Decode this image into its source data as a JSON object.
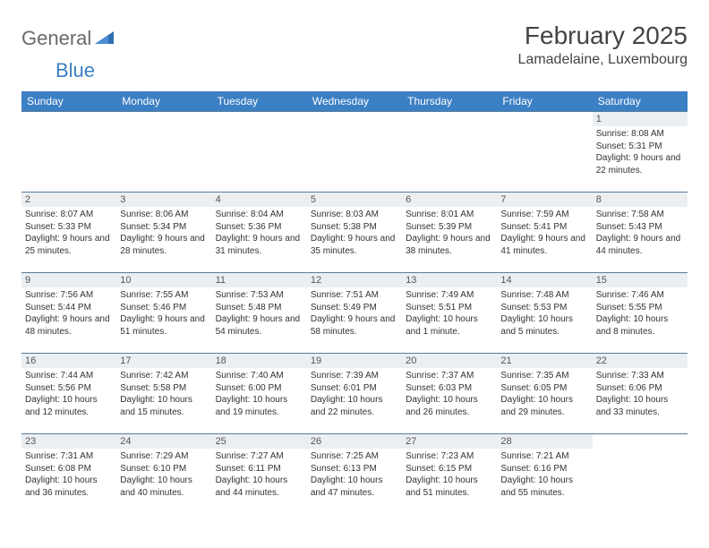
{
  "brand": {
    "part1": "General",
    "part2": "Blue"
  },
  "title": "February 2025",
  "location": "Lamadelaine, Luxembourg",
  "colors": {
    "header_bg": "#3b7fc4",
    "header_text": "#ffffff",
    "daynum_bg": "#eceff1",
    "border": "#5a7a9a",
    "logo_gray": "#6a6a6a",
    "logo_blue": "#3b7fc4"
  },
  "day_headers": [
    "Sunday",
    "Monday",
    "Tuesday",
    "Wednesday",
    "Thursday",
    "Friday",
    "Saturday"
  ],
  "weeks": [
    [
      null,
      null,
      null,
      null,
      null,
      null,
      {
        "n": "1",
        "sunrise": "8:08 AM",
        "sunset": "5:31 PM",
        "daylight": "9 hours and 22 minutes."
      }
    ],
    [
      {
        "n": "2",
        "sunrise": "8:07 AM",
        "sunset": "5:33 PM",
        "daylight": "9 hours and 25 minutes."
      },
      {
        "n": "3",
        "sunrise": "8:06 AM",
        "sunset": "5:34 PM",
        "daylight": "9 hours and 28 minutes."
      },
      {
        "n": "4",
        "sunrise": "8:04 AM",
        "sunset": "5:36 PM",
        "daylight": "9 hours and 31 minutes."
      },
      {
        "n": "5",
        "sunrise": "8:03 AM",
        "sunset": "5:38 PM",
        "daylight": "9 hours and 35 minutes."
      },
      {
        "n": "6",
        "sunrise": "8:01 AM",
        "sunset": "5:39 PM",
        "daylight": "9 hours and 38 minutes."
      },
      {
        "n": "7",
        "sunrise": "7:59 AM",
        "sunset": "5:41 PM",
        "daylight": "9 hours and 41 minutes."
      },
      {
        "n": "8",
        "sunrise": "7:58 AM",
        "sunset": "5:43 PM",
        "daylight": "9 hours and 44 minutes."
      }
    ],
    [
      {
        "n": "9",
        "sunrise": "7:56 AM",
        "sunset": "5:44 PM",
        "daylight": "9 hours and 48 minutes."
      },
      {
        "n": "10",
        "sunrise": "7:55 AM",
        "sunset": "5:46 PM",
        "daylight": "9 hours and 51 minutes."
      },
      {
        "n": "11",
        "sunrise": "7:53 AM",
        "sunset": "5:48 PM",
        "daylight": "9 hours and 54 minutes."
      },
      {
        "n": "12",
        "sunrise": "7:51 AM",
        "sunset": "5:49 PM",
        "daylight": "9 hours and 58 minutes."
      },
      {
        "n": "13",
        "sunrise": "7:49 AM",
        "sunset": "5:51 PM",
        "daylight": "10 hours and 1 minute."
      },
      {
        "n": "14",
        "sunrise": "7:48 AM",
        "sunset": "5:53 PM",
        "daylight": "10 hours and 5 minutes."
      },
      {
        "n": "15",
        "sunrise": "7:46 AM",
        "sunset": "5:55 PM",
        "daylight": "10 hours and 8 minutes."
      }
    ],
    [
      {
        "n": "16",
        "sunrise": "7:44 AM",
        "sunset": "5:56 PM",
        "daylight": "10 hours and 12 minutes."
      },
      {
        "n": "17",
        "sunrise": "7:42 AM",
        "sunset": "5:58 PM",
        "daylight": "10 hours and 15 minutes."
      },
      {
        "n": "18",
        "sunrise": "7:40 AM",
        "sunset": "6:00 PM",
        "daylight": "10 hours and 19 minutes."
      },
      {
        "n": "19",
        "sunrise": "7:39 AM",
        "sunset": "6:01 PM",
        "daylight": "10 hours and 22 minutes."
      },
      {
        "n": "20",
        "sunrise": "7:37 AM",
        "sunset": "6:03 PM",
        "daylight": "10 hours and 26 minutes."
      },
      {
        "n": "21",
        "sunrise": "7:35 AM",
        "sunset": "6:05 PM",
        "daylight": "10 hours and 29 minutes."
      },
      {
        "n": "22",
        "sunrise": "7:33 AM",
        "sunset": "6:06 PM",
        "daylight": "10 hours and 33 minutes."
      }
    ],
    [
      {
        "n": "23",
        "sunrise": "7:31 AM",
        "sunset": "6:08 PM",
        "daylight": "10 hours and 36 minutes."
      },
      {
        "n": "24",
        "sunrise": "7:29 AM",
        "sunset": "6:10 PM",
        "daylight": "10 hours and 40 minutes."
      },
      {
        "n": "25",
        "sunrise": "7:27 AM",
        "sunset": "6:11 PM",
        "daylight": "10 hours and 44 minutes."
      },
      {
        "n": "26",
        "sunrise": "7:25 AM",
        "sunset": "6:13 PM",
        "daylight": "10 hours and 47 minutes."
      },
      {
        "n": "27",
        "sunrise": "7:23 AM",
        "sunset": "6:15 PM",
        "daylight": "10 hours and 51 minutes."
      },
      {
        "n": "28",
        "sunrise": "7:21 AM",
        "sunset": "6:16 PM",
        "daylight": "10 hours and 55 minutes."
      },
      null
    ]
  ],
  "labels": {
    "sunrise": "Sunrise: ",
    "sunset": "Sunset: ",
    "daylight": "Daylight: "
  }
}
